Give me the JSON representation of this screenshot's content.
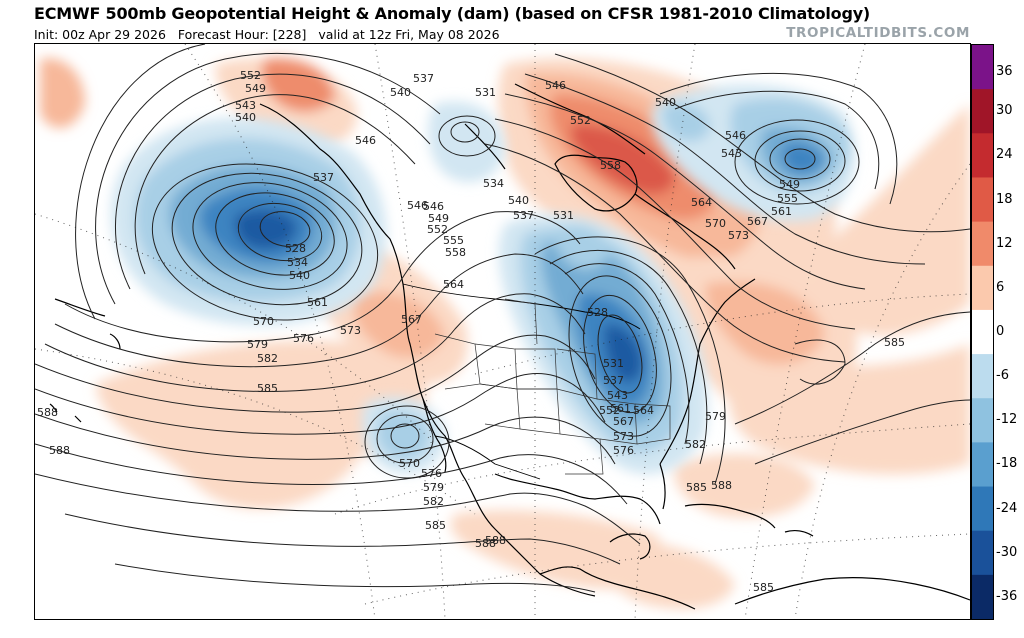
{
  "header": {
    "title": "ECMWF 500mb Geopotential Height & Anomaly (dam) (based on CFSR 1981-2010 Climatology)",
    "init_time": "Init: 00z Apr 29 2026",
    "forecast_hour": "Forecast Hour: [228]",
    "valid_time": "valid at 12z Fri, May 08 2026",
    "brand": "TROPICALTIDBITS.COM"
  },
  "colors": {
    "pos_weak": "#fbd9c5",
    "pos_light": "#f7b89a",
    "pos_mid": "#ee8c6c",
    "pos_strong": "#db5848",
    "pos_max": "#bf2b2f",
    "neg_weak": "#d2e6f2",
    "neg_light": "#a8cfe6",
    "neg_mid": "#73acd3",
    "neg_strong": "#3e84c1",
    "neg_max": "#1c5aa2",
    "contour": "#222222",
    "coast": "#000000"
  },
  "colorbar": {
    "labels": [
      "36",
      "30",
      "24",
      "18",
      "12",
      "6",
      "0",
      "-6",
      "-12",
      "-18",
      "-24",
      "-30",
      "-36"
    ],
    "stops": [
      {
        "value": 36,
        "color": "#7b1389"
      },
      {
        "value": 30,
        "color": "#a01528"
      },
      {
        "value": 24,
        "color": "#c42b2f"
      },
      {
        "value": 18,
        "color": "#e05a46"
      },
      {
        "value": 12,
        "color": "#f08a6a"
      },
      {
        "value": 6,
        "color": "#fbc9ad"
      },
      {
        "value": 0,
        "color": "#ffffff"
      },
      {
        "value": -6,
        "color": "#bcdcee"
      },
      {
        "value": -12,
        "color": "#8fc2e0"
      },
      {
        "value": -18,
        "color": "#5a9fcf"
      },
      {
        "value": -24,
        "color": "#2f78b8"
      },
      {
        "value": -30,
        "color": "#1a519a"
      },
      {
        "value": -36,
        "color": "#0b2a66"
      }
    ]
  },
  "anomaly_centers": [
    {
      "name": "gulf-of-alaska-low",
      "sign": "negative"
    },
    {
      "name": "great-lakes-trough",
      "sign": "negative"
    },
    {
      "name": "greenland-low",
      "sign": "negative"
    },
    {
      "name": "hudson-bay-ridge",
      "sign": "positive"
    },
    {
      "name": "baja-cutoff-low",
      "sign": "negative"
    }
  ],
  "contour_labels": [
    {
      "text": "552"
    },
    {
      "text": "549"
    },
    {
      "text": "543"
    },
    {
      "text": "540"
    },
    {
      "text": "537"
    },
    {
      "text": "540"
    },
    {
      "text": "531"
    },
    {
      "text": "546"
    },
    {
      "text": "546"
    },
    {
      "text": "540"
    },
    {
      "text": "552"
    },
    {
      "text": "558"
    },
    {
      "text": "546"
    },
    {
      "text": "543"
    },
    {
      "text": "549"
    },
    {
      "text": "555"
    },
    {
      "text": "564"
    },
    {
      "text": "561"
    },
    {
      "text": "567"
    },
    {
      "text": "570"
    },
    {
      "text": "573"
    },
    {
      "text": "546"
    },
    {
      "text": "537"
    },
    {
      "text": "534"
    },
    {
      "text": "546"
    },
    {
      "text": "549"
    },
    {
      "text": "552"
    },
    {
      "text": "555"
    },
    {
      "text": "558"
    },
    {
      "text": "540"
    },
    {
      "text": "537"
    },
    {
      "text": "531"
    },
    {
      "text": "528"
    },
    {
      "text": "534"
    },
    {
      "text": "540"
    },
    {
      "text": "564"
    },
    {
      "text": "561"
    },
    {
      "text": "570"
    },
    {
      "text": "567"
    },
    {
      "text": "573"
    },
    {
      "text": "576"
    },
    {
      "text": "579"
    },
    {
      "text": "582"
    },
    {
      "text": "585"
    },
    {
      "text": "528"
    },
    {
      "text": "531"
    },
    {
      "text": "537"
    },
    {
      "text": "543"
    },
    {
      "text": "552"
    },
    {
      "text": "561"
    },
    {
      "text": "564"
    },
    {
      "text": "567"
    },
    {
      "text": "573"
    },
    {
      "text": "576"
    },
    {
      "text": "579"
    },
    {
      "text": "582"
    },
    {
      "text": "585"
    },
    {
      "text": "585"
    },
    {
      "text": "588"
    },
    {
      "text": "588"
    },
    {
      "text": "570"
    },
    {
      "text": "576"
    },
    {
      "text": "579"
    },
    {
      "text": "582"
    },
    {
      "text": "585"
    },
    {
      "text": "588"
    },
    {
      "text": "588"
    },
    {
      "text": "585"
    },
    {
      "text": "588"
    }
  ]
}
